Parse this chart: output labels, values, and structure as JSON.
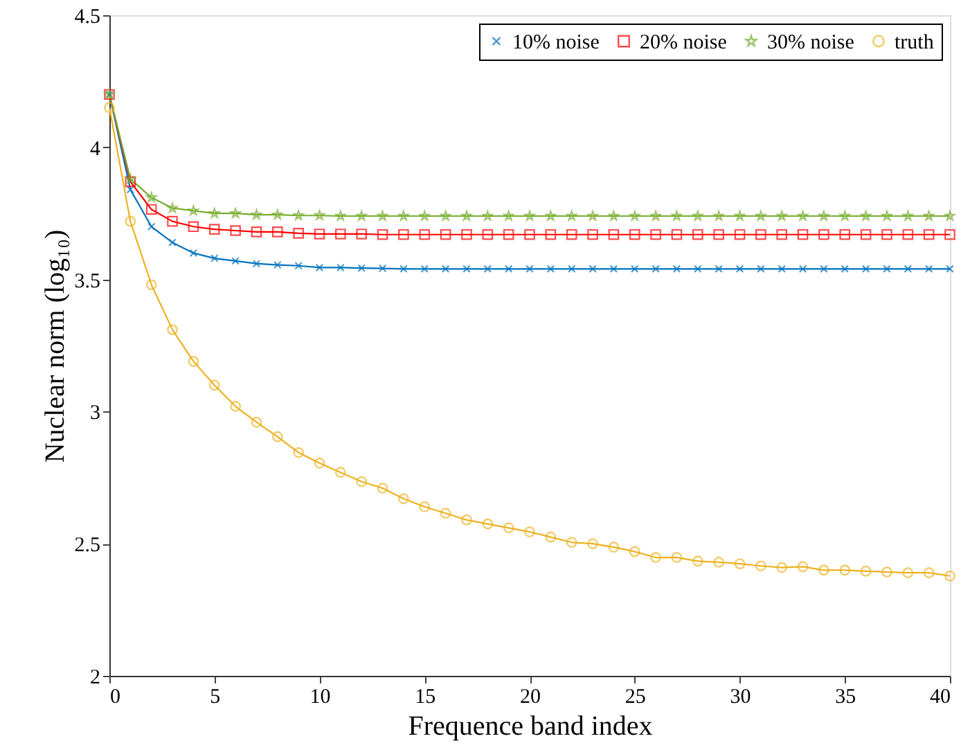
{
  "chart_data": {
    "type": "line",
    "xlabel": "Frequence band index",
    "ylabel": "Nuclear norm (log₁₀)",
    "x": [
      0,
      1,
      2,
      3,
      4,
      5,
      6,
      7,
      8,
      9,
      10,
      11,
      12,
      13,
      14,
      15,
      16,
      17,
      18,
      19,
      20,
      21,
      22,
      23,
      24,
      25,
      26,
      27,
      28,
      29,
      30,
      31,
      32,
      33,
      34,
      35,
      36,
      37,
      38,
      39,
      40
    ],
    "series": [
      {
        "name": "10% noise",
        "color": "#0072bd",
        "marker": "cross",
        "values": [
          4.2,
          3.84,
          3.7,
          3.64,
          3.6,
          3.58,
          3.57,
          3.56,
          3.555,
          3.552,
          3.545,
          3.545,
          3.543,
          3.542,
          3.54,
          3.54,
          3.54,
          3.54,
          3.54,
          3.54,
          3.54,
          3.54,
          3.54,
          3.54,
          3.54,
          3.54,
          3.54,
          3.54,
          3.54,
          3.54,
          3.54,
          3.54,
          3.54,
          3.54,
          3.54,
          3.54,
          3.54,
          3.54,
          3.54,
          3.54,
          3.54
        ]
      },
      {
        "name": "20% noise",
        "color": "#ff0000",
        "marker": "square",
        "values": [
          4.2,
          3.87,
          3.765,
          3.72,
          3.7,
          3.69,
          3.685,
          3.68,
          3.68,
          3.675,
          3.672,
          3.672,
          3.672,
          3.67,
          3.67,
          3.67,
          3.67,
          3.67,
          3.67,
          3.67,
          3.67,
          3.67,
          3.67,
          3.67,
          3.67,
          3.67,
          3.67,
          3.67,
          3.67,
          3.67,
          3.67,
          3.67,
          3.67,
          3.67,
          3.67,
          3.67,
          3.67,
          3.67,
          3.67,
          3.67,
          3.67
        ]
      },
      {
        "name": "30% noise",
        "color": "#77ac30",
        "marker": "star",
        "values": [
          4.2,
          3.88,
          3.81,
          3.77,
          3.76,
          3.75,
          3.75,
          3.745,
          3.745,
          3.742,
          3.742,
          3.74,
          3.74,
          3.74,
          3.74,
          3.74,
          3.74,
          3.74,
          3.74,
          3.74,
          3.74,
          3.74,
          3.74,
          3.74,
          3.74,
          3.74,
          3.74,
          3.74,
          3.74,
          3.74,
          3.74,
          3.74,
          3.74,
          3.74,
          3.74,
          3.74,
          3.74,
          3.74,
          3.74,
          3.74,
          3.74
        ]
      },
      {
        "name": "truth",
        "color": "#edb120",
        "marker": "circle",
        "values": [
          4.15,
          3.72,
          3.48,
          3.31,
          3.19,
          3.1,
          3.02,
          2.96,
          2.905,
          2.845,
          2.805,
          2.77,
          2.735,
          2.71,
          2.67,
          2.64,
          2.615,
          2.59,
          2.575,
          2.56,
          2.545,
          2.525,
          2.505,
          2.5,
          2.487,
          2.47,
          2.448,
          2.448,
          2.434,
          2.43,
          2.424,
          2.416,
          2.41,
          2.413,
          2.4,
          2.4,
          2.396,
          2.393,
          2.39,
          2.39,
          2.378
        ]
      }
    ],
    "xlim": [
      0,
      40
    ],
    "xticks": [
      0,
      5,
      10,
      15,
      20,
      25,
      30,
      35,
      40
    ],
    "ylim": [
      2,
      4.5
    ],
    "yticks": [
      2,
      2.5,
      3,
      3.5,
      4,
      4.5
    ],
    "grid": false,
    "legend": "top right",
    "line_style": "solid"
  }
}
